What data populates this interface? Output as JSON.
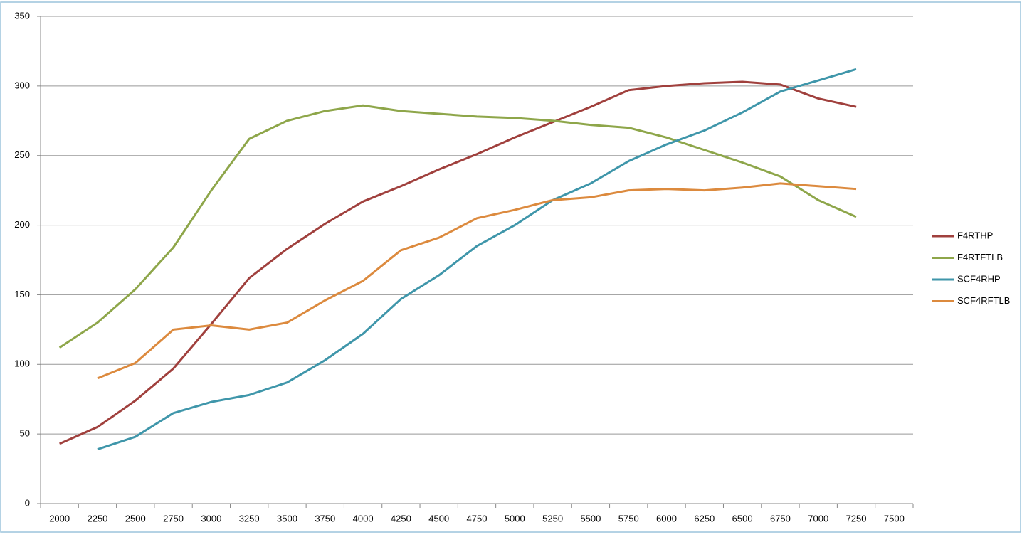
{
  "chart_data": {
    "type": "line",
    "categories": [
      2000,
      2250,
      2500,
      2750,
      3000,
      3250,
      3500,
      3750,
      4000,
      4250,
      4500,
      4750,
      5000,
      5250,
      5500,
      5750,
      6000,
      6250,
      6500,
      6750,
      7000,
      7250,
      7500
    ],
    "series": [
      {
        "name": "F4RTHP",
        "color": "#a0403d",
        "values": [
          43,
          55,
          74,
          97,
          129,
          162,
          183,
          201,
          217,
          228,
          240,
          251,
          263,
          274,
          285,
          297,
          300,
          302,
          303,
          301,
          291,
          285,
          null
        ]
      },
      {
        "name": "F4RTFTLB",
        "color": "#8ea64a",
        "values": [
          112,
          130,
          154,
          184,
          225,
          262,
          275,
          282,
          286,
          282,
          280,
          278,
          277,
          275,
          272,
          270,
          263,
          254,
          245,
          235,
          218,
          206,
          null
        ]
      },
      {
        "name": "SCF4RHP",
        "color": "#3f96aa",
        "values": [
          null,
          39,
          48,
          65,
          73,
          78,
          87,
          103,
          122,
          147,
          164,
          185,
          200,
          218,
          230,
          246,
          258,
          268,
          281,
          296,
          304,
          312,
          null
        ]
      },
      {
        "name": "SCF4RFTLB",
        "color": "#dc8a3e",
        "values": [
          null,
          90,
          101,
          125,
          128,
          125,
          130,
          146,
          160,
          182,
          191,
          205,
          211,
          218,
          220,
          225,
          226,
          225,
          227,
          230,
          228,
          226,
          null
        ]
      }
    ],
    "ylim": [
      0,
      350
    ],
    "yticks": [
      0,
      50,
      100,
      150,
      200,
      250,
      300,
      350
    ],
    "grid": true,
    "legend": "right"
  }
}
